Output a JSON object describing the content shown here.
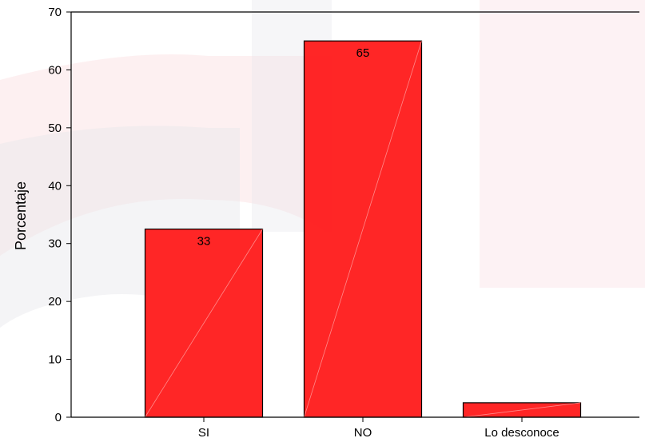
{
  "chart_data": {
    "type": "bar",
    "title": "",
    "xlabel": "",
    "ylabel": "Porcentaje",
    "categories": [
      "SI",
      "NO",
      "Lo desconoce"
    ],
    "values": [
      32.5,
      65,
      2.5
    ],
    "data_labels": [
      "33",
      "65",
      ""
    ],
    "ylim": [
      0,
      70
    ],
    "yticks": [
      0,
      10,
      20,
      30,
      40,
      50,
      60,
      70
    ],
    "grid": false,
    "legend": "none",
    "bar_color": "#ff1a1a",
    "bar_edge_color": "#000000"
  },
  "background": {
    "watermark_colors": [
      "#fbe3e6",
      "#e6e6ec"
    ]
  }
}
